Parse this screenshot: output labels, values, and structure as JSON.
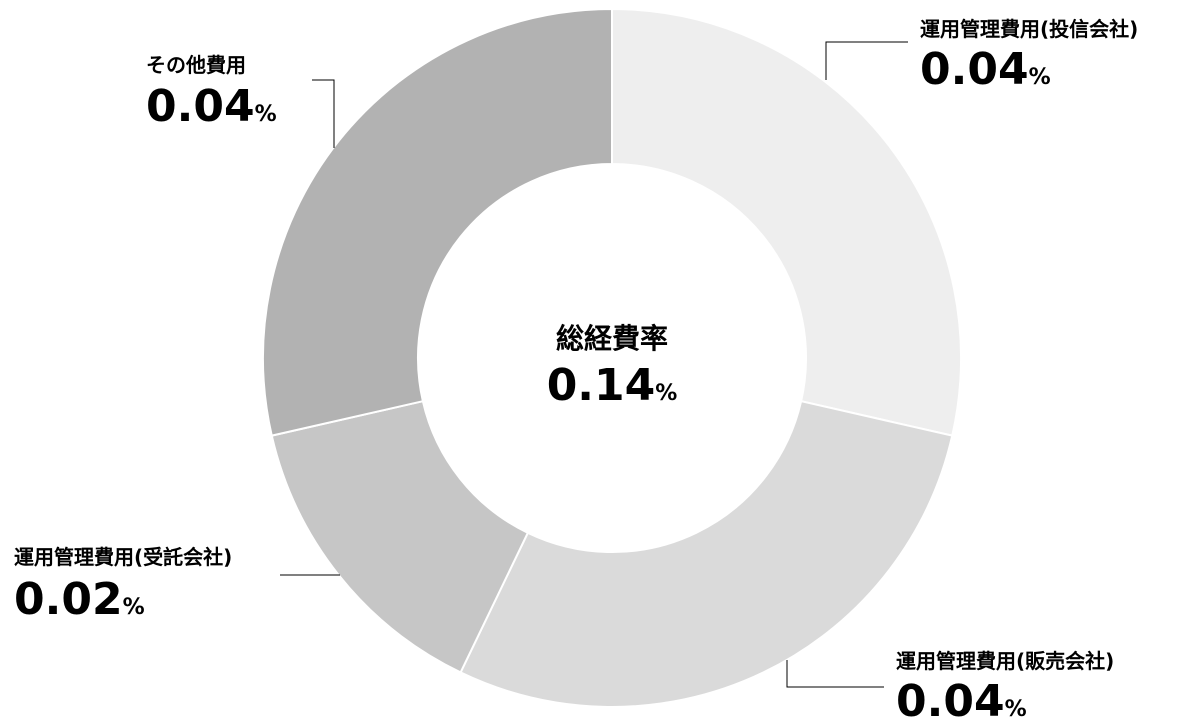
{
  "chart_data": {
    "type": "pie",
    "donut": true,
    "center": {
      "title": "総経費率",
      "value": "0.14",
      "unit": "%"
    },
    "slices": [
      {
        "label": "運用管理費用(投信会社)",
        "value": 0.04,
        "value_text": "0.04",
        "unit": "%",
        "color": "#eeeeee"
      },
      {
        "label": "運用管理費用(販売会社)",
        "value": 0.04,
        "value_text": "0.04",
        "unit": "%",
        "color": "#dadada"
      },
      {
        "label": "運用管理費用(受託会社)",
        "value": 0.02,
        "value_text": "0.02",
        "unit": "%",
        "color": "#c6c6c6"
      },
      {
        "label": "その他費用",
        "value": 0.04,
        "value_text": "0.04",
        "unit": "%",
        "color": "#b2b2b2"
      }
    ],
    "start_angle": "top",
    "direction": "clockwise",
    "legend": "none"
  }
}
